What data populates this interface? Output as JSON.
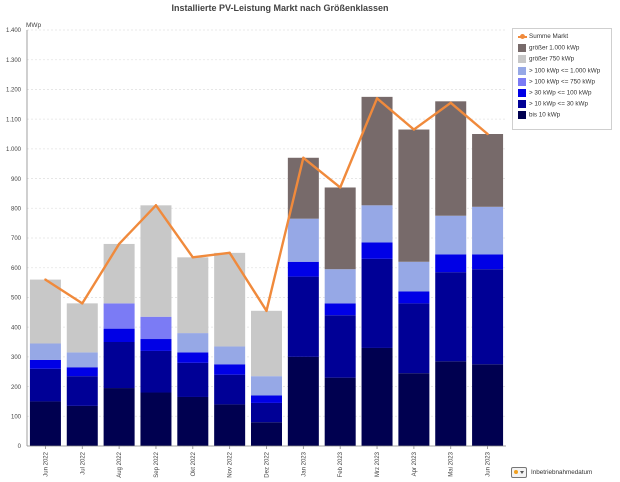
{
  "chart_data": {
    "type": "bar",
    "stacked": true,
    "title": "Installierte PV-Leistung Markt nach Größenklassen",
    "ylabel": "MWp",
    "xlabel": "",
    "ylim": [
      0,
      1400
    ],
    "yticks": [
      0,
      100,
      200,
      300,
      400,
      500,
      600,
      700,
      800,
      900,
      1000,
      1100,
      1200,
      1300,
      1400
    ],
    "ytick_labels": [
      "0",
      "100",
      "200",
      "300",
      "400",
      "500",
      "600",
      "700",
      "800",
      "900",
      "1.000",
      "1.100",
      "1.200",
      "1.300",
      "1.400"
    ],
    "grid": true,
    "legend_position": "top-right",
    "categories": [
      "Jun 2022",
      "Jul 2022",
      "Aug 2022",
      "Sep 2022",
      "Okt 2022",
      "Nov 2022",
      "Dez 2022",
      "Jan 2023",
      "Feb 2023",
      "Mrz 2023",
      "Apr 2023",
      "Mai 2023",
      "Jun 2023"
    ],
    "series": [
      {
        "name": "bis 10 kWp",
        "color": "#000050",
        "values": [
          150,
          135,
          195,
          180,
          165,
          140,
          80,
          300,
          230,
          330,
          245,
          285,
          275
        ]
      },
      {
        "name": "> 10 kWp <= 30 kWp",
        "color": "#000096",
        "values": [
          110,
          100,
          155,
          140,
          115,
          100,
          65,
          270,
          210,
          300,
          235,
          300,
          320
        ]
      },
      {
        "name": "> 30 kWp <= 100 kWp",
        "color": "#0000e6",
        "values": [
          30,
          30,
          45,
          40,
          35,
          35,
          25,
          50,
          40,
          55,
          40,
          60,
          50
        ]
      },
      {
        "name": "> 100 kWp <= 750 kWp",
        "color": "#7b7bf5",
        "values": [
          0,
          0,
          85,
          75,
          0,
          0,
          0,
          0,
          0,
          0,
          0,
          0,
          0
        ]
      },
      {
        "name": "> 100 kWp <= 1.000 kWp",
        "color": "#96a8e6",
        "values": [
          55,
          50,
          0,
          0,
          65,
          60,
          65,
          145,
          115,
          125,
          100,
          130,
          160
        ]
      },
      {
        "name": "größer 750 kWp",
        "color": "#c8c8c8",
        "values": [
          215,
          165,
          200,
          375,
          255,
          315,
          220,
          0,
          0,
          0,
          0,
          0,
          0
        ]
      },
      {
        "name": "größer 1.000 kWp",
        "color": "#776a6a",
        "values": [
          0,
          0,
          0,
          0,
          0,
          0,
          0,
          205,
          275,
          365,
          445,
          385,
          245
        ]
      }
    ],
    "line_series": {
      "name": "Summe Markt",
      "color": "#f08a3c",
      "values": [
        560,
        480,
        680,
        810,
        635,
        650,
        455,
        970,
        870,
        1170,
        1065,
        1155,
        1050
      ]
    }
  },
  "legend": {
    "items": [
      {
        "label": "Summe Markt",
        "color": "#f08a3c",
        "kind": "line"
      },
      {
        "label": "größer 1.000 kWp",
        "color": "#776a6a",
        "kind": "box"
      },
      {
        "label": "größer 750 kWp",
        "color": "#c8c8c8",
        "kind": "box"
      },
      {
        "label": "> 100 kWp <= 1.000 kWp",
        "color": "#96a8e6",
        "kind": "box"
      },
      {
        "label": "> 100 kWp <= 750 kWp",
        "color": "#7b7bf5",
        "kind": "box"
      },
      {
        "label": "> 30 kWp <= 100 kWp",
        "color": "#0000e6",
        "kind": "box"
      },
      {
        "label": "> 10 kWp <= 30 kWp",
        "color": "#000096",
        "kind": "box"
      },
      {
        "label": "bis 10 kWp",
        "color": "#000050",
        "kind": "box"
      }
    ]
  },
  "footer": {
    "label": "Inbetriebnahmedatum",
    "icon": "dropdown-chart-icon"
  }
}
